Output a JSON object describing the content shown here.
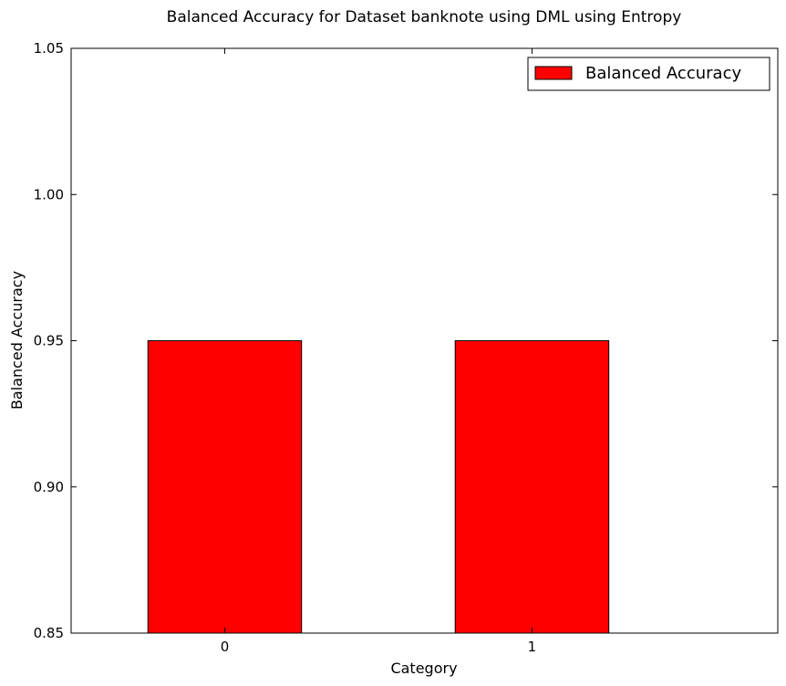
{
  "chart_data": {
    "type": "bar",
    "title": "Balanced Accuracy for Dataset banknote using DML using Entropy",
    "xlabel": "Category",
    "ylabel": "Balanced Accuracy",
    "categories": [
      "0",
      "1"
    ],
    "series": [
      {
        "name": "Balanced Accuracy",
        "values": [
          0.95,
          0.95
        ],
        "color": "#ff0000"
      }
    ],
    "ylim": [
      0.85,
      1.05
    ],
    "yticks": [
      0.85,
      0.9,
      0.95,
      1.0,
      1.05
    ],
    "ytick_labels": [
      "0.85",
      "0.90",
      "0.95",
      "1.00",
      "1.05"
    ],
    "grid": false,
    "legend_position": "top-right"
  }
}
